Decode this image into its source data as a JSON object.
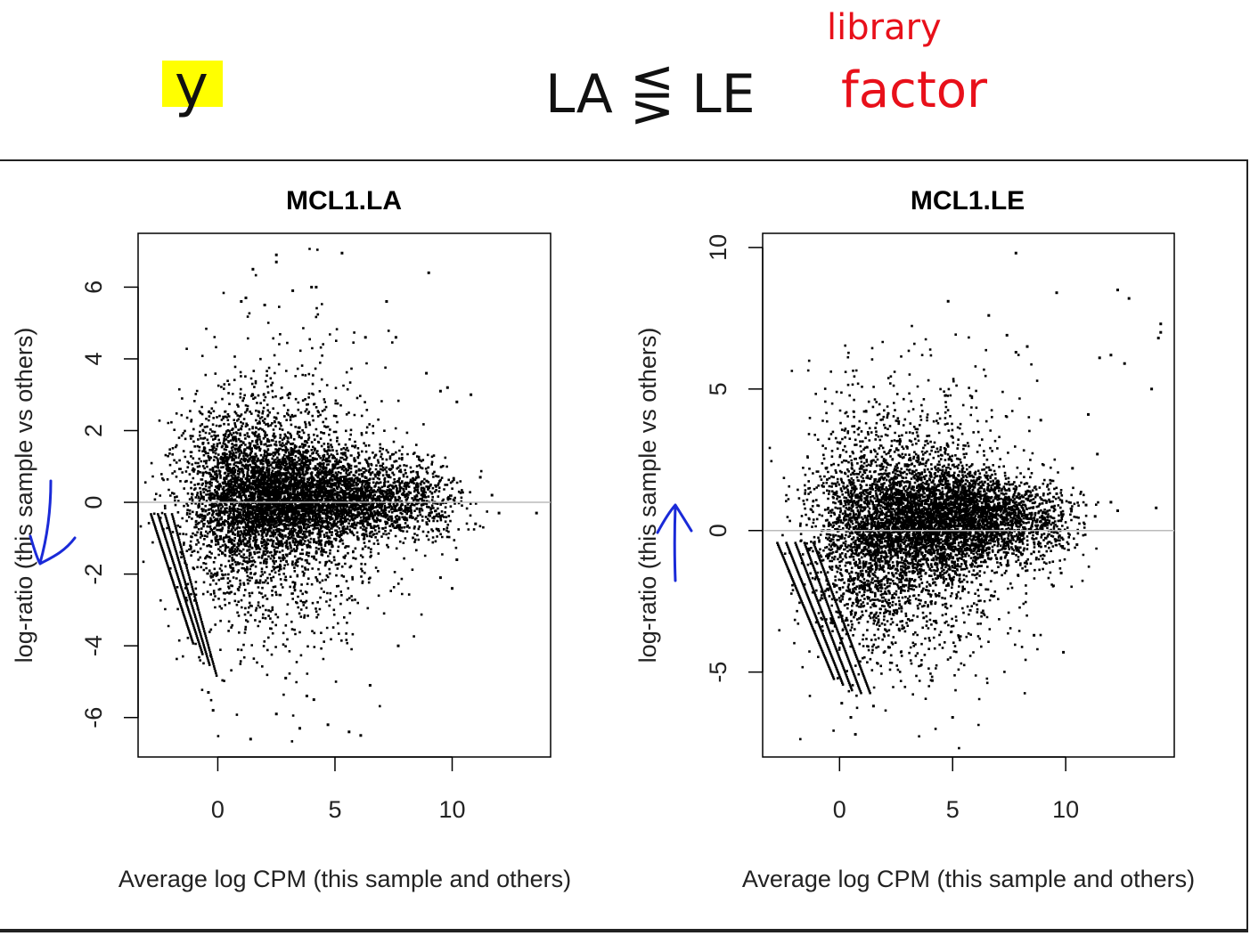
{
  "annotations": {
    "highlight_text": "y",
    "comparison_text": "LA ⋚ LE",
    "red_note_line1": "library",
    "red_note_line2": "factor",
    "colors": {
      "highlight": "#ffff00",
      "ink": "#111111",
      "red": "#e8101a",
      "blue": "#1a2ad8"
    }
  },
  "chart_data": [
    {
      "type": "scatter",
      "title": "MCL1.LA",
      "xlabel": "Average log CPM (this sample and others)",
      "ylabel": "log-ratio (this sample vs others)",
      "xlim": [
        -3.4,
        14.2
      ],
      "ylim": [
        -7.1,
        7.5
      ],
      "xticks": [
        0,
        5,
        10
      ],
      "yticks": [
        -6,
        -4,
        -2,
        0,
        2,
        4,
        6
      ],
      "xtick_labels": [
        "0",
        "5",
        "10"
      ],
      "ytick_labels": [
        "-6",
        "-4",
        "-2",
        "0",
        "2",
        "4",
        "6"
      ],
      "reference_line_y": 0,
      "grid": false,
      "point_color": "#000000",
      "ref_line_color": "#bbbbbb",
      "points": [
        [
          2.5,
          6.9
        ],
        [
          2.5,
          6.7
        ],
        [
          5.3,
          6.95
        ],
        [
          9.0,
          6.4
        ],
        [
          1.5,
          6.5
        ],
        [
          4.0,
          6.0
        ],
        [
          4.2,
          6.0
        ],
        [
          3.2,
          5.9
        ],
        [
          7.2,
          5.6
        ],
        [
          1.0,
          5.6
        ],
        [
          1.2,
          5.7
        ],
        [
          2.0,
          5.5
        ],
        [
          6.3,
          4.6
        ],
        [
          7.6,
          4.6
        ],
        [
          8.9,
          3.6
        ],
        [
          9.8,
          3.2
        ],
        [
          9.5,
          3.1
        ],
        [
          10.8,
          3.0
        ],
        [
          10.2,
          2.8
        ],
        [
          11.2,
          0.7
        ],
        [
          11.7,
          0.2
        ],
        [
          12.0,
          -0.3
        ],
        [
          13.6,
          -0.3
        ],
        [
          11.0,
          -0.6
        ],
        [
          10.2,
          -1.6
        ],
        [
          10.0,
          -2.4
        ],
        [
          9.5,
          -2.1
        ],
        [
          7.7,
          -4.0
        ],
        [
          6.5,
          -5.1
        ],
        [
          6.1,
          -6.5
        ],
        [
          5.6,
          -6.4
        ],
        [
          1.4,
          -6.6
        ],
        [
          3.5,
          -6.3
        ],
        [
          4.7,
          -6.2
        ],
        [
          2.5,
          -5.9
        ],
        [
          -0.2,
          -5.8
        ],
        [
          -0.4,
          -5.3
        ],
        [
          3.8,
          -5.4
        ],
        [
          4.1,
          -5.5
        ],
        [
          2.9,
          -4.9
        ]
      ],
      "cloud_clusters": [
        {
          "cx": 2.8,
          "cy": 0.2,
          "sx": 1.6,
          "sy": 0.75,
          "n": 2600
        },
        {
          "cx": 6.0,
          "cy": 0.1,
          "sx": 1.7,
          "sy": 0.55,
          "n": 1500
        },
        {
          "cx": 0.6,
          "cy": 0.3,
          "sx": 1.1,
          "sy": 1.3,
          "n": 1200
        },
        {
          "cx": 3.0,
          "cy": 0.8,
          "sx": 2.0,
          "sy": 1.9,
          "n": 800
        },
        {
          "cx": 2.5,
          "cy": -1.2,
          "sx": 2.2,
          "sy": 1.6,
          "n": 800
        },
        {
          "cx": 8.6,
          "cy": 0.0,
          "sx": 1.0,
          "sy": 0.55,
          "n": 260
        }
      ],
      "tail_lines": [
        {
          "x0": -2.9,
          "y0": -0.3,
          "x1": -1.1,
          "y1": -3.9,
          "n": 70
        },
        {
          "x0": -2.6,
          "y0": -0.3,
          "x1": -0.7,
          "y1": -4.2,
          "n": 70
        },
        {
          "x0": -2.3,
          "y0": -0.3,
          "x1": -0.4,
          "y1": -4.5,
          "n": 70
        },
        {
          "x0": -2.0,
          "y0": -0.3,
          "x1": -0.1,
          "y1": -4.8,
          "n": 70
        }
      ]
    },
    {
      "type": "scatter",
      "title": "MCL1.LE",
      "xlabel": "Average log CPM (this sample and others)",
      "ylabel": "log-ratio (this sample vs others)",
      "xlim": [
        -3.4,
        14.8
      ],
      "ylim": [
        -8.0,
        10.5
      ],
      "xticks": [
        0,
        5,
        10
      ],
      "yticks": [
        -5,
        0,
        5,
        10
      ],
      "xtick_labels": [
        "0",
        "5",
        "10"
      ],
      "ytick_labels": [
        "-5",
        "0",
        "5",
        "10"
      ],
      "reference_line_y": 0,
      "grid": false,
      "point_color": "#000000",
      "ref_line_color": "#bbbbbb",
      "points": [
        [
          7.8,
          9.8
        ],
        [
          12.3,
          8.5
        ],
        [
          12.8,
          8.2
        ],
        [
          9.6,
          8.4
        ],
        [
          4.8,
          8.1
        ],
        [
          14.2,
          7.3
        ],
        [
          14.2,
          7.0
        ],
        [
          14.1,
          6.8
        ],
        [
          6.6,
          7.6
        ],
        [
          7.4,
          6.9
        ],
        [
          8.3,
          6.5
        ],
        [
          7.8,
          6.3
        ],
        [
          11.5,
          6.1
        ],
        [
          12.0,
          6.2
        ],
        [
          12.6,
          5.9
        ],
        [
          13.8,
          5.0
        ],
        [
          11.0,
          4.1
        ],
        [
          11.4,
          2.7
        ],
        [
          12.0,
          1.0
        ],
        [
          12.3,
          0.7
        ],
        [
          14.0,
          0.8
        ],
        [
          10.9,
          0.9
        ],
        [
          11.3,
          0.5
        ],
        [
          10.5,
          -0.5
        ],
        [
          9.8,
          -1.5
        ],
        [
          9.9,
          -4.3
        ],
        [
          8.6,
          -3.7
        ],
        [
          5.0,
          -6.6
        ],
        [
          0.7,
          -7.2
        ],
        [
          0.5,
          -6.6
        ],
        [
          1.5,
          -6.2
        ],
        [
          0.1,
          -6.1
        ],
        [
          4.1,
          -5.3
        ],
        [
          9.6,
          1.3
        ],
        [
          8.9,
          3.9
        ],
        [
          10.3,
          2.2
        ]
      ],
      "cloud_clusters": [
        {
          "cx": 3.8,
          "cy": 0.4,
          "sx": 1.8,
          "sy": 1.0,
          "n": 2600
        },
        {
          "cx": 6.2,
          "cy": 0.5,
          "sx": 1.6,
          "sy": 0.7,
          "n": 1500
        },
        {
          "cx": 1.0,
          "cy": 0.0,
          "sx": 1.2,
          "sy": 1.8,
          "n": 1200
        },
        {
          "cx": 3.5,
          "cy": 1.2,
          "sx": 2.2,
          "sy": 2.4,
          "n": 800
        },
        {
          "cx": 2.8,
          "cy": -1.5,
          "sx": 2.2,
          "sy": 2.0,
          "n": 800
        },
        {
          "cx": 8.8,
          "cy": 0.2,
          "sx": 1.0,
          "sy": 0.8,
          "n": 260
        }
      ],
      "tail_lines": [
        {
          "x0": -2.8,
          "y0": -0.4,
          "x1": -0.3,
          "y1": -5.2,
          "n": 80
        },
        {
          "x0": -2.4,
          "y0": -0.4,
          "x1": 0.1,
          "y1": -5.4,
          "n": 80
        },
        {
          "x0": -2.0,
          "y0": -0.4,
          "x1": 0.5,
          "y1": -5.6,
          "n": 80
        },
        {
          "x0": -1.6,
          "y0": -0.4,
          "x1": 0.9,
          "y1": -5.7,
          "n": 80
        },
        {
          "x0": -1.2,
          "y0": -0.4,
          "x1": 1.3,
          "y1": -5.7,
          "n": 80
        }
      ]
    }
  ]
}
